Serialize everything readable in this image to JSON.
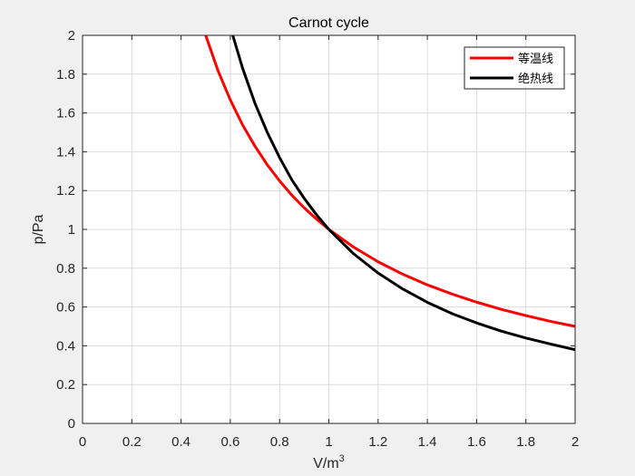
{
  "chart_data": {
    "type": "line",
    "title": "Carnot cycle",
    "xlabel": "V/m",
    "xlabel_superscript": "3",
    "ylabel": "p/Pa",
    "xlim": [
      0,
      2
    ],
    "ylim": [
      0,
      2
    ],
    "xticks": [
      "0",
      "0.2",
      "0.4",
      "0.6",
      "0.8",
      "1",
      "1.2",
      "1.4",
      "1.6",
      "1.8",
      "2"
    ],
    "yticks": [
      "0",
      "0.2",
      "0.4",
      "0.6",
      "0.8",
      "1",
      "1.2",
      "1.4",
      "1.6",
      "1.8",
      "2"
    ],
    "grid": true,
    "legend_position": "top-right",
    "series": [
      {
        "name": "等温线",
        "color": "#ff0000",
        "x": [
          0.5,
          0.55,
          0.6,
          0.65,
          0.7,
          0.75,
          0.8,
          0.85,
          0.9,
          0.95,
          1.0,
          1.1,
          1.2,
          1.3,
          1.4,
          1.5,
          1.6,
          1.7,
          1.8,
          1.9,
          2.0
        ],
        "y": [
          2.0,
          1.818,
          1.667,
          1.538,
          1.429,
          1.333,
          1.25,
          1.176,
          1.111,
          1.053,
          1.0,
          0.909,
          0.833,
          0.769,
          0.714,
          0.667,
          0.625,
          0.588,
          0.556,
          0.526,
          0.5
        ]
      },
      {
        "name": "绝热线",
        "color": "#000000",
        "x": [
          0.61,
          0.65,
          0.7,
          0.75,
          0.8,
          0.85,
          0.9,
          0.95,
          1.0,
          1.1,
          1.2,
          1.3,
          1.4,
          1.5,
          1.6,
          1.7,
          1.8,
          1.9,
          2.0
        ],
        "y": [
          2.0,
          1.83,
          1.65,
          1.5,
          1.37,
          1.255,
          1.16,
          1.075,
          1.0,
          0.875,
          0.775,
          0.693,
          0.624,
          0.566,
          0.518,
          0.476,
          0.44,
          0.409,
          0.38
        ]
      }
    ]
  }
}
